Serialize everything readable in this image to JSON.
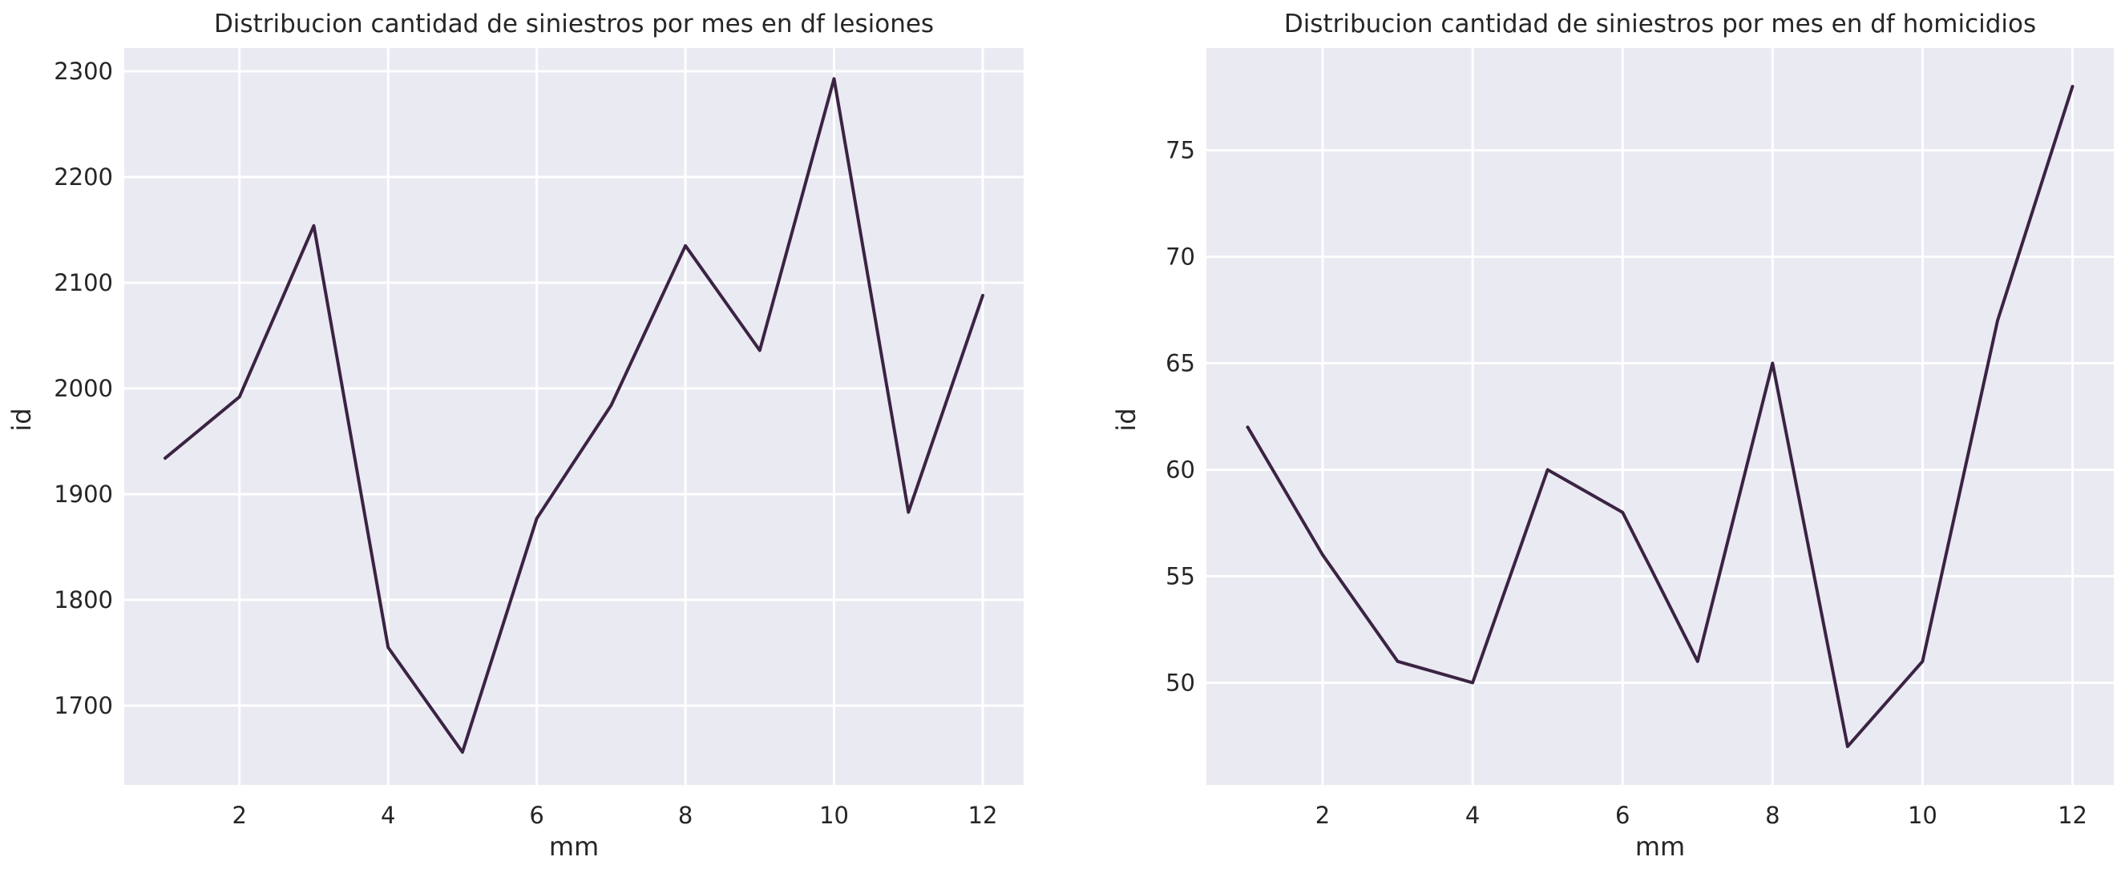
{
  "chart_data": [
    {
      "type": "line",
      "title": "Distribucion cantidad de siniestros por mes en df lesiones",
      "xlabel": "mm",
      "ylabel": "id",
      "x": [
        1,
        2,
        3,
        4,
        5,
        6,
        7,
        8,
        9,
        10,
        11,
        12
      ],
      "series": [
        {
          "values": [
            1934,
            1992,
            2154,
            1755,
            1656,
            1877,
            1984,
            2135,
            2036,
            2293,
            1883,
            2088
          ]
        }
      ],
      "xlim": [
        0.45,
        12.55
      ],
      "ylim": [
        1625,
        2322
      ],
      "xticks": [
        2,
        4,
        6,
        8,
        10,
        12
      ],
      "yticks": [
        1700,
        1800,
        1900,
        2000,
        2100,
        2200,
        2300
      ],
      "grid": true,
      "line_color": "#3b2343"
    },
    {
      "type": "line",
      "title": "Distribucion cantidad de siniestros por mes en df homicidios",
      "xlabel": "mm",
      "ylabel": "id",
      "x": [
        1,
        2,
        3,
        4,
        5,
        6,
        7,
        8,
        9,
        10,
        11,
        12
      ],
      "series": [
        {
          "values": [
            62,
            56,
            51,
            50,
            60,
            58,
            51,
            65,
            47,
            51,
            67,
            78
          ]
        }
      ],
      "xlim": [
        0.45,
        12.55
      ],
      "ylim": [
        45.2,
        79.8
      ],
      "xticks": [
        2,
        4,
        6,
        8,
        10,
        12
      ],
      "yticks": [
        50,
        55,
        60,
        65,
        70,
        75
      ],
      "grid": true,
      "line_color": "#3b2343"
    }
  ]
}
